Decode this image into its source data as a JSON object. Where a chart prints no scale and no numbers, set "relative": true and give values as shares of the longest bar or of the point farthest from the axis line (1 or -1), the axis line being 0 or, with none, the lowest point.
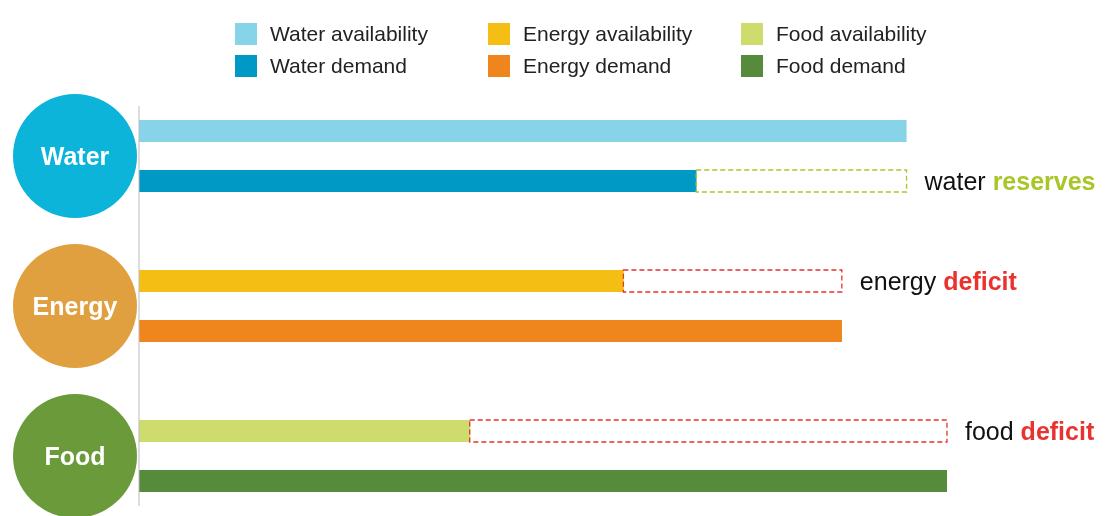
{
  "chart_data": {
    "type": "bar",
    "orientation": "horizontal",
    "relative": true,
    "legend": "top",
    "categories": [
      "Water",
      "Energy",
      "Food"
    ],
    "series": [
      {
        "name": "Water availability",
        "color": "#87d3e8",
        "values": [
          0.95,
          null,
          null
        ]
      },
      {
        "name": "Water demand",
        "color": "#0099c5",
        "values": [
          0.69,
          null,
          null
        ]
      },
      {
        "name": "Energy availability",
        "color": "#f5be14",
        "values": [
          null,
          0.6,
          null
        ]
      },
      {
        "name": "Energy demand",
        "color": "#ef861d",
        "values": [
          null,
          0.87,
          null
        ]
      },
      {
        "name": "Food availability",
        "color": "#cddc6c",
        "values": [
          null,
          null,
          0.41
        ]
      },
      {
        "name": "Food demand",
        "color": "#558b3a",
        "values": [
          null,
          null,
          1
        ]
      }
    ],
    "annotations": [
      "water reserves",
      "energy deficit",
      "food deficit"
    ]
  }
}
